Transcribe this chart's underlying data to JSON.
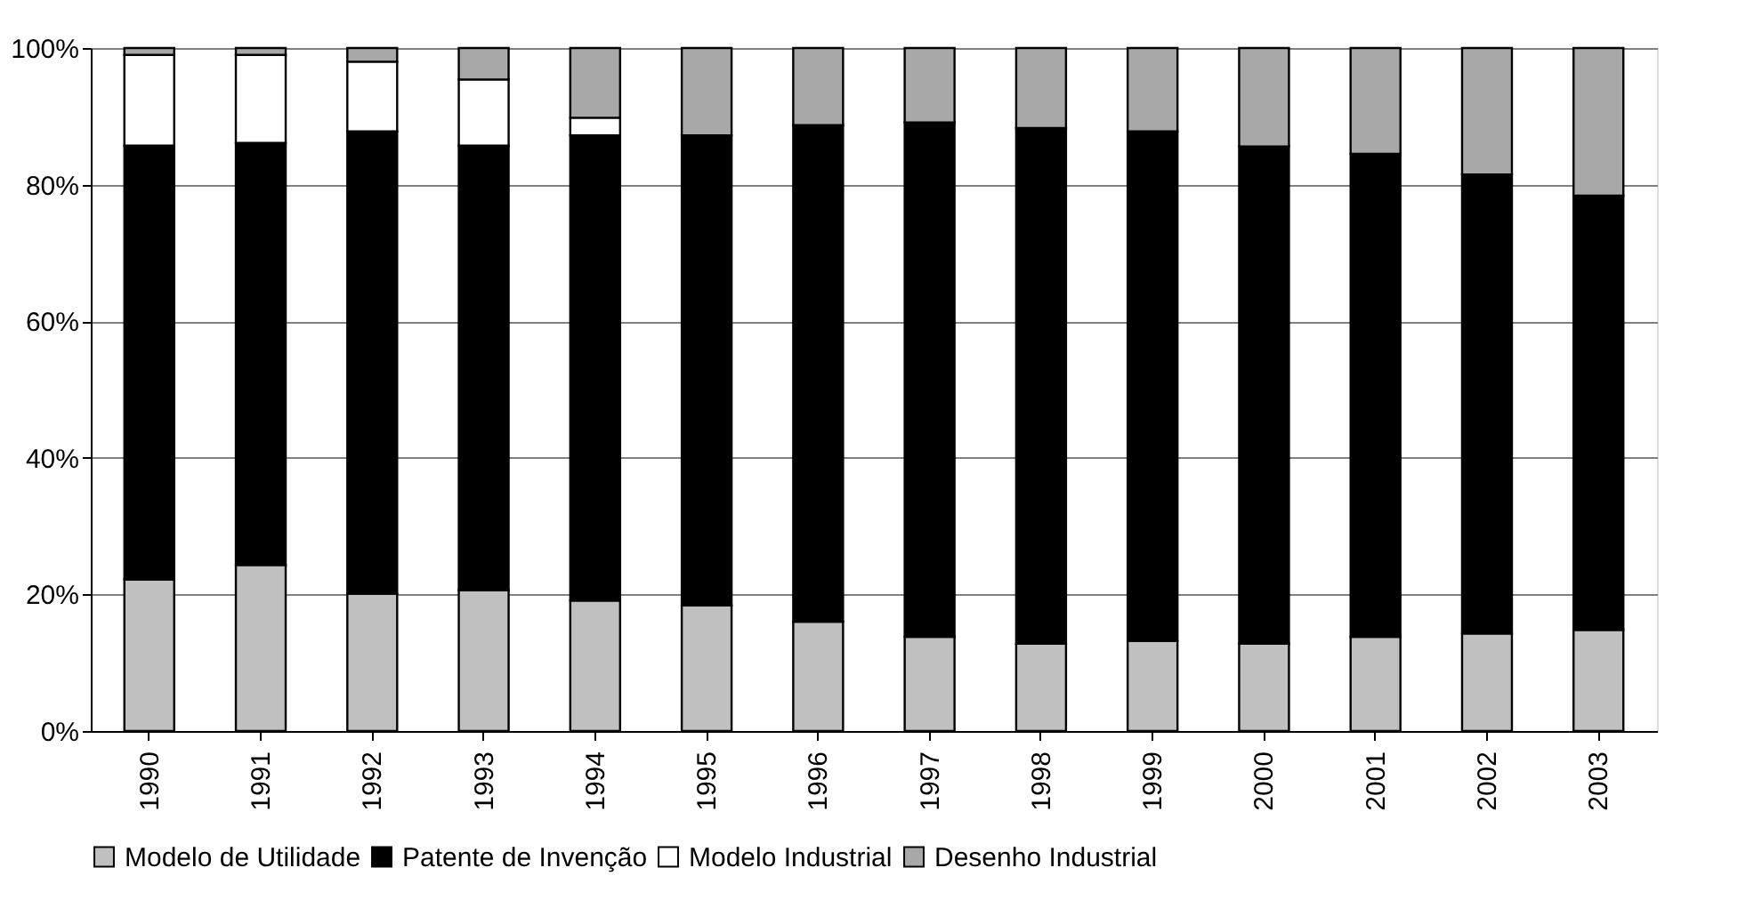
{
  "chart_data": {
    "type": "bar",
    "stacked": true,
    "categories": [
      "1990",
      "1991",
      "1992",
      "1993",
      "1994",
      "1995",
      "1996",
      "1997",
      "1998",
      "1999",
      "2000",
      "2001",
      "2002",
      "2003"
    ],
    "series": [
      {
        "name": "Modelo de Utilidade",
        "color": "#c0c0c0",
        "values": [
          22.2,
          24.3,
          20.1,
          20.6,
          19.1,
          18.4,
          16.0,
          13.8,
          12.8,
          13.2,
          12.8,
          13.8,
          14.3,
          14.8
        ]
      },
      {
        "name": "Patente de Invenção",
        "color": "#000000",
        "values": [
          63.5,
          61.8,
          67.7,
          65.1,
          68.1,
          68.8,
          72.7,
          75.3,
          75.5,
          74.6,
          72.8,
          70.7,
          67.2,
          63.6
        ]
      },
      {
        "name": "Modelo Industrial",
        "color": "#ffffff",
        "values": [
          13.3,
          12.9,
          10.2,
          9.7,
          2.6,
          0,
          0,
          0,
          0,
          0,
          0,
          0,
          0,
          0
        ]
      },
      {
        "name": "Desenho Industrial",
        "color": "#a8a8a8",
        "values": [
          1.0,
          1.0,
          2.0,
          4.6,
          10.2,
          12.8,
          11.3,
          10.9,
          11.7,
          12.2,
          14.4,
          15.5,
          18.5,
          21.6
        ]
      }
    ],
    "ylim": [
      0,
      100
    ],
    "yticks": [
      {
        "value": 0,
        "label": "0%"
      },
      {
        "value": 20,
        "label": "20%"
      },
      {
        "value": 40,
        "label": "40%"
      },
      {
        "value": 60,
        "label": "60%"
      },
      {
        "value": 80,
        "label": "80%"
      },
      {
        "value": 100,
        "label": "100%"
      }
    ],
    "grid": "y",
    "legend": "bottom"
  }
}
